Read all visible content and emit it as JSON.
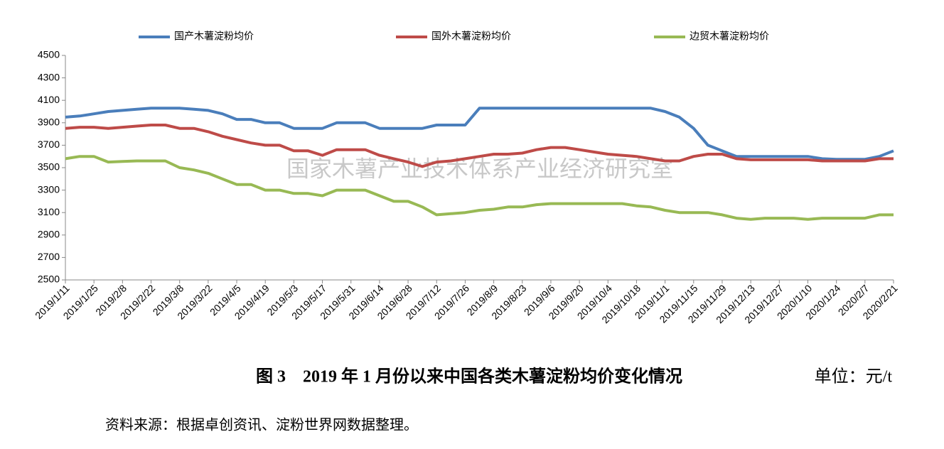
{
  "chart_data": {
    "type": "line",
    "title": "图 3　2019 年 1 月份以来中国各类木薯淀粉均价变化情况",
    "unit": "单位：元/t",
    "source": "资料来源：根据卓创资讯、淀粉世界网数据整理。",
    "watermark": "国家木薯产业技术体系产业经济研究室",
    "categories": [
      "2019/1/11",
      null,
      "2019/1/25",
      null,
      "2019/2/8",
      null,
      "2019/2/22",
      null,
      "2019/3/8",
      null,
      "2019/3/22",
      null,
      "2019/4/5",
      null,
      "2019/4/19",
      null,
      "2019/5/3",
      null,
      "2019/5/17",
      null,
      "2019/5/31",
      null,
      "2019/6/14",
      null,
      "2019/6/28",
      null,
      "2019/7/12",
      null,
      "2019/7/26",
      null,
      "2019/8/9",
      null,
      "2019/8/23",
      null,
      "2019/9/6",
      null,
      "2019/9/20",
      null,
      "2019/10/4",
      null,
      "2019/10/18",
      null,
      "2019/11/1",
      null,
      "2019/11/15",
      null,
      "2019/11/29",
      null,
      "2019/12/13",
      null,
      "2019/12/27",
      null,
      "2020/1/10",
      null,
      "2020/1/24",
      null,
      "2020/2/7",
      null,
      "2020/2/21"
    ],
    "series": [
      {
        "name": "国产木薯淀粉均价",
        "color": "#4a7ebb",
        "values": [
          3950,
          3960,
          3980,
          4000,
          4010,
          4020,
          4030,
          4030,
          4030,
          4020,
          4010,
          3980,
          3930,
          3930,
          3900,
          3900,
          3850,
          3850,
          3850,
          3900,
          3900,
          3900,
          3850,
          3850,
          3850,
          3850,
          3880,
          3880,
          3880,
          4030,
          4030,
          4030,
          4030,
          4030,
          4030,
          4030,
          4030,
          4030,
          4030,
          4030,
          4030,
          4030,
          4000,
          3950,
          3850,
          3700,
          3650,
          3600,
          3600,
          3600,
          3600,
          3600,
          3600,
          3580,
          3575,
          3575,
          3575,
          3600,
          3650
        ]
      },
      {
        "name": "国外木薯淀粉均价",
        "color": "#be4b48",
        "values": [
          3850,
          3860,
          3860,
          3850,
          3860,
          3870,
          3880,
          3880,
          3850,
          3850,
          3820,
          3780,
          3750,
          3720,
          3700,
          3700,
          3650,
          3650,
          3610,
          3660,
          3660,
          3660,
          3610,
          3580,
          3550,
          3510,
          3550,
          3560,
          3580,
          3600,
          3620,
          3620,
          3630,
          3660,
          3680,
          3680,
          3660,
          3640,
          3620,
          3610,
          3600,
          3580,
          3560,
          3560,
          3600,
          3620,
          3620,
          3580,
          3570,
          3570,
          3570,
          3570,
          3570,
          3560,
          3560,
          3560,
          3560,
          3580,
          3580
        ]
      },
      {
        "name": "边贸木薯淀粉均价",
        "color": "#98b954",
        "values": [
          3580,
          3600,
          3600,
          3550,
          3555,
          3560,
          3560,
          3560,
          3500,
          3480,
          3450,
          3400,
          3350,
          3350,
          3300,
          3300,
          3270,
          3270,
          3250,
          3300,
          3300,
          3300,
          3250,
          3200,
          3200,
          3150,
          3080,
          3090,
          3100,
          3120,
          3130,
          3150,
          3150,
          3170,
          3180,
          3180,
          3180,
          3180,
          3180,
          3180,
          3160,
          3150,
          3120,
          3100,
          3100,
          3100,
          3080,
          3050,
          3040,
          3050,
          3050,
          3050,
          3040,
          3050,
          3050,
          3050,
          3050,
          3080,
          3080
        ]
      }
    ],
    "ylim": [
      2500,
      4500
    ],
    "yticks": [
      2500,
      2700,
      2900,
      3100,
      3300,
      3500,
      3700,
      3900,
      4100,
      4300,
      4500
    ],
    "legend": "top"
  }
}
